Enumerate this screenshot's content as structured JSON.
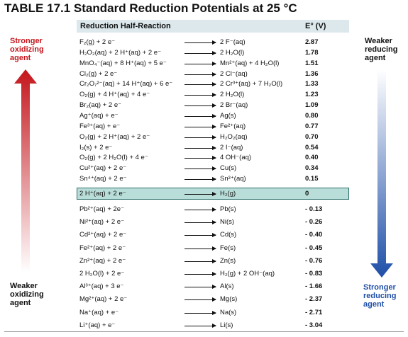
{
  "header": {
    "title": "TABLE 17.1  Standard Reduction Potentials at 25 °C"
  },
  "table": {
    "columns": [
      "Reduction Half-Reaction",
      "E° (V)"
    ],
    "rows": [
      {
        "reactant": "F₂(g) + 2 e⁻",
        "product": "2 F⁻(aq)",
        "potential": "2.87"
      },
      {
        "reactant": "H₂O₂(aq) + 2 H⁺(aq) + 2 e⁻",
        "product": "2 H₂O(l)",
        "potential": "1.78"
      },
      {
        "reactant": "MnO₄⁻(aq) + 8 H⁺(aq) + 5 e⁻",
        "product": "Mn²⁺(aq) + 4 H₂O(l)",
        "potential": "1.51"
      },
      {
        "reactant": "Cl₂(g) + 2 e⁻",
        "product": "2 Cl⁻(aq)",
        "potential": "1.36"
      },
      {
        "reactant": "Cr₂O₇²⁻(aq) + 14 H⁺(aq) + 6 e⁻",
        "product": "2 Cr³⁺(aq) + 7 H₂O(l)",
        "potential": "1.33"
      },
      {
        "reactant": "O₂(g) + 4 H⁺(aq) + 4 e⁻",
        "product": "2 H₂O(l)",
        "potential": "1.23"
      },
      {
        "reactant": "Br₂(aq) + 2 e⁻",
        "product": "2 Br⁻(aq)",
        "potential": "1.09"
      },
      {
        "reactant": "Ag⁺(aq) + e⁻",
        "product": "Ag(s)",
        "potential": "0.80"
      },
      {
        "reactant": "Fe³⁺(aq) + e⁻",
        "product": "Fe²⁺(aq)",
        "potential": "0.77"
      },
      {
        "reactant": "O₂(g) + 2 H⁺(aq) + 2 e⁻",
        "product": "H₂O₂(aq)",
        "potential": "0.70"
      },
      {
        "reactant": "I₂(s) + 2 e⁻",
        "product": "2 I⁻(aq)",
        "potential": "0.54"
      },
      {
        "reactant": "O₂(g) + 2 H₂O(l) + 4 e⁻",
        "product": "4 OH⁻(aq)",
        "potential": "0.40"
      },
      {
        "reactant": "Cu²⁺(aq) + 2 e⁻",
        "product": "Cu(s)",
        "potential": "0.34"
      },
      {
        "reactant": "Sn⁴⁺(aq) + 2 e⁻",
        "product": "Sn²⁺(aq)",
        "potential": "0.15"
      },
      {
        "reactant": "2 H⁺(aq) + 2 e⁻",
        "product": "H₂(g)",
        "potential": "0"
      },
      {
        "reactant": "Pb²⁺(aq) + 2e⁻",
        "product": "Pb(s)",
        "potential": "- 0.13"
      },
      {
        "reactant": "Ni²⁺(aq) + 2 e⁻",
        "product": "Ni(s)",
        "potential": "- 0.26"
      },
      {
        "reactant": "Cd²⁺(aq) + 2 e⁻",
        "product": "Cd(s)",
        "potential": "- 0.40"
      },
      {
        "reactant": "Fe²⁺(aq) + 2 e⁻",
        "product": "Fe(s)",
        "potential": "- 0.45"
      },
      {
        "reactant": "Zn²⁺(aq) + 2 e⁻",
        "product": "Zn(s)",
        "potential": "- 0.76"
      },
      {
        "reactant": "2 H₂O(l) + 2 e⁻",
        "product": "H₂(g) + 2 OH⁻(aq)",
        "potential": "- 0.83"
      },
      {
        "reactant": "Al³⁺(aq) + 3 e⁻",
        "product": "Al(s)",
        "potential": "- 1.66"
      },
      {
        "reactant": "Mg²⁺(aq) + 2 e⁻",
        "product": "Mg(s)",
        "potential": "- 2.37"
      },
      {
        "reactant": "Na⁺(aq) + e⁻",
        "product": "Na(s)",
        "potential": "- 2.71"
      },
      {
        "reactant": "Li⁺(aq) + e⁻",
        "product": "Li(s)",
        "potential": "- 3.04"
      }
    ]
  },
  "left": {
    "top": [
      "Stronger",
      "oxidizing",
      "agent"
    ],
    "bottom": [
      "Weaker",
      "oxidizing",
      "agent"
    ]
  },
  "right": {
    "top": [
      "Weaker",
      "reducing",
      "agent"
    ],
    "bottom": [
      "Stronger",
      "reducing",
      "agent"
    ]
  }
}
